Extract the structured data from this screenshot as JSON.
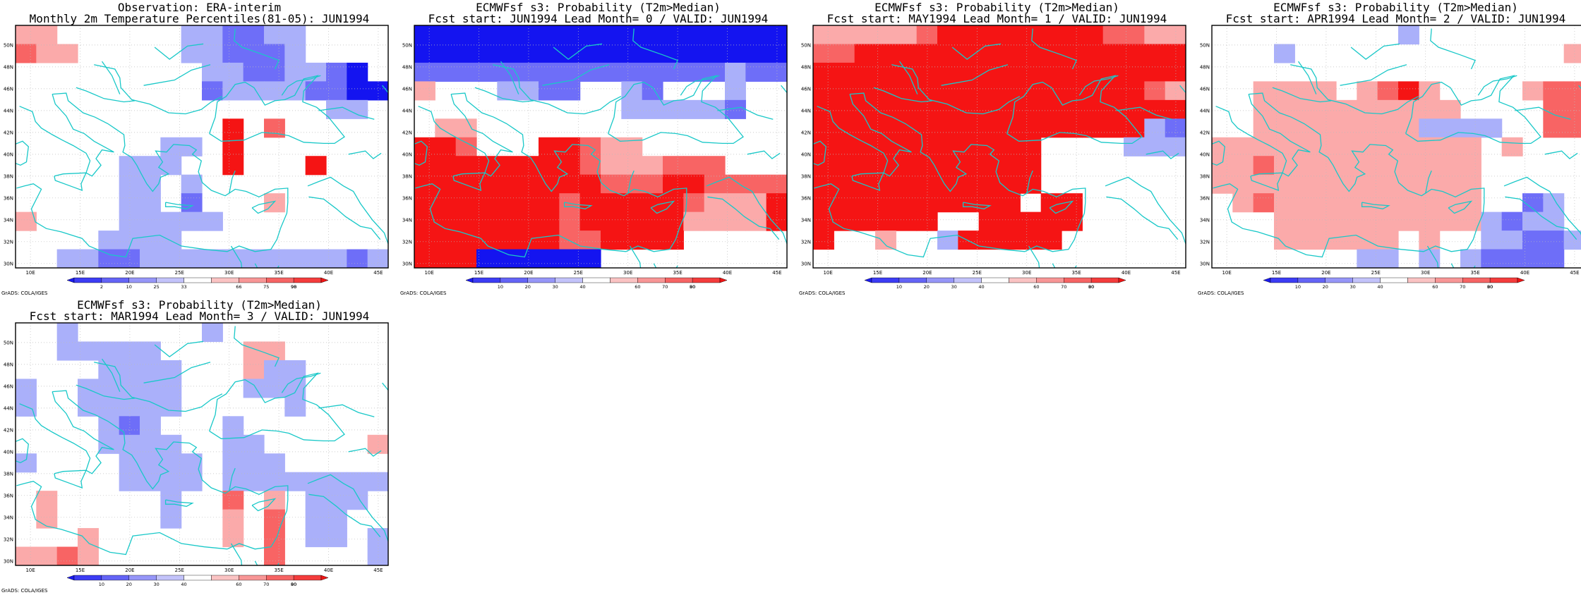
{
  "panels": [
    {
      "title_line1": "Observation: ERA-interim",
      "title_line2": "Monthly 2m Temperature Percentiles(81-05): JUN1994",
      "legend_ticks": [
        "2",
        "10",
        "25",
        "33",
        "66",
        "75",
        "90",
        "98"
      ],
      "grid": [
        [
          4,
          4,
          0,
          0,
          0,
          0,
          0,
          0,
          1,
          1,
          2,
          2,
          1,
          1,
          0,
          0,
          0,
          0
        ],
        [
          5,
          4,
          4,
          0,
          0,
          0,
          0,
          0,
          1,
          1,
          2,
          2,
          2,
          1,
          0,
          0,
          0,
          0
        ],
        [
          0,
          0,
          0,
          0,
          0,
          0,
          0,
          0,
          0,
          1,
          1,
          2,
          2,
          1,
          1,
          2,
          3,
          0
        ],
        [
          0,
          0,
          0,
          0,
          0,
          0,
          0,
          0,
          0,
          2,
          1,
          1,
          1,
          1,
          2,
          2,
          3,
          3
        ],
        [
          0,
          0,
          0,
          0,
          0,
          0,
          0,
          0,
          0,
          0,
          0,
          0,
          0,
          0,
          0,
          1,
          1,
          0
        ],
        [
          0,
          0,
          0,
          0,
          0,
          0,
          0,
          0,
          0,
          0,
          6,
          0,
          5,
          0,
          0,
          0,
          0,
          0
        ],
        [
          0,
          0,
          0,
          0,
          0,
          0,
          0,
          1,
          1,
          0,
          6,
          0,
          0,
          0,
          0,
          0,
          0,
          0
        ],
        [
          0,
          0,
          0,
          0,
          0,
          1,
          1,
          1,
          0,
          0,
          6,
          0,
          0,
          0,
          6,
          0,
          0,
          0
        ],
        [
          0,
          0,
          0,
          0,
          0,
          1,
          1,
          0,
          1,
          0,
          0,
          0,
          0,
          0,
          0,
          0,
          0,
          0
        ],
        [
          0,
          0,
          0,
          0,
          0,
          1,
          1,
          0,
          2,
          0,
          0,
          0,
          4,
          0,
          0,
          0,
          0,
          0
        ],
        [
          4,
          0,
          0,
          0,
          0,
          1,
          1,
          1,
          1,
          1,
          0,
          0,
          0,
          0,
          0,
          0,
          0,
          0
        ],
        [
          0,
          0,
          0,
          0,
          1,
          1,
          1,
          1,
          0,
          0,
          0,
          0,
          0,
          0,
          0,
          0,
          0,
          0
        ],
        [
          0,
          0,
          1,
          1,
          2,
          2,
          1,
          1,
          1,
          1,
          1,
          1,
          1,
          1,
          1,
          1,
          2,
          1
        ]
      ]
    },
    {
      "title_line1": "ECMWFsf s3: Probability (T2m>Median)",
      "title_line2": "Fcst start: JUN1994  Lead Month= 0 / VALID: JUN1994",
      "legend_ticks": [
        "10",
        "20",
        "30",
        "40",
        "60",
        "70",
        "80",
        "90"
      ],
      "grid": [
        [
          3,
          3,
          3,
          3,
          3,
          3,
          3,
          3,
          3,
          3,
          3,
          3,
          3,
          3,
          3,
          3,
          3,
          3
        ],
        [
          3,
          3,
          3,
          3,
          3,
          3,
          3,
          3,
          3,
          3,
          3,
          3,
          3,
          3,
          3,
          3,
          3,
          3
        ],
        [
          2,
          2,
          2,
          2,
          2,
          2,
          2,
          2,
          2,
          2,
          2,
          2,
          2,
          2,
          2,
          1,
          2,
          2
        ],
        [
          4,
          0,
          0,
          0,
          1,
          1,
          2,
          2,
          0,
          0,
          1,
          2,
          0,
          0,
          0,
          1,
          0,
          0
        ],
        [
          0,
          0,
          0,
          0,
          0,
          0,
          0,
          0,
          0,
          0,
          1,
          1,
          1,
          1,
          1,
          2,
          0,
          0
        ],
        [
          0,
          4,
          4,
          0,
          0,
          0,
          0,
          0,
          0,
          0,
          0,
          0,
          0,
          0,
          0,
          0,
          0,
          0
        ],
        [
          6,
          6,
          5,
          0,
          0,
          0,
          6,
          6,
          5,
          4,
          4,
          0,
          0,
          0,
          0,
          0,
          0,
          0
        ],
        [
          6,
          6,
          6,
          6,
          6,
          6,
          6,
          6,
          5,
          4,
          4,
          4,
          5,
          5,
          5,
          0,
          0,
          0
        ],
        [
          6,
          6,
          6,
          6,
          6,
          6,
          6,
          6,
          6,
          5,
          5,
          5,
          6,
          6,
          5,
          5,
          5,
          5
        ],
        [
          6,
          6,
          6,
          6,
          6,
          6,
          6,
          5,
          6,
          6,
          6,
          6,
          6,
          5,
          4,
          4,
          4,
          6
        ],
        [
          6,
          6,
          6,
          6,
          6,
          6,
          6,
          5,
          6,
          6,
          6,
          6,
          6,
          4,
          4,
          4,
          4,
          6
        ],
        [
          6,
          6,
          6,
          6,
          6,
          6,
          6,
          5,
          5,
          6,
          6,
          6,
          6,
          0,
          0,
          0,
          0,
          0
        ],
        [
          6,
          6,
          6,
          3,
          3,
          3,
          3,
          3,
          3,
          0,
          0,
          0,
          0,
          0,
          0,
          0,
          0,
          0
        ]
      ]
    },
    {
      "title_line1": "ECMWFsf s3: Probability (T2m>Median)",
      "title_line2": "Fcst start: MAY1994  Lead Month= 1 / VALID: JUN1994",
      "legend_ticks": [
        "10",
        "20",
        "30",
        "40",
        "60",
        "70",
        "80",
        "90"
      ],
      "grid": [
        [
          4,
          4,
          4,
          4,
          4,
          5,
          6,
          6,
          6,
          6,
          6,
          6,
          6,
          6,
          5,
          5,
          4,
          4
        ],
        [
          5,
          5,
          6,
          6,
          6,
          6,
          6,
          6,
          6,
          6,
          6,
          6,
          6,
          6,
          6,
          6,
          6,
          6
        ],
        [
          6,
          6,
          6,
          6,
          6,
          6,
          6,
          6,
          6,
          6,
          6,
          6,
          6,
          6,
          6,
          6,
          6,
          6
        ],
        [
          6,
          6,
          6,
          6,
          6,
          6,
          6,
          6,
          6,
          6,
          6,
          6,
          6,
          6,
          6,
          6,
          5,
          4
        ],
        [
          6,
          6,
          6,
          6,
          6,
          6,
          6,
          6,
          6,
          6,
          6,
          6,
          6,
          6,
          6,
          6,
          6,
          6
        ],
        [
          6,
          6,
          6,
          6,
          6,
          6,
          6,
          6,
          6,
          6,
          6,
          6,
          6,
          6,
          6,
          6,
          1,
          2
        ],
        [
          6,
          6,
          6,
          6,
          6,
          6,
          6,
          6,
          6,
          6,
          6,
          0,
          0,
          0,
          0,
          1,
          1,
          1
        ],
        [
          6,
          6,
          6,
          6,
          6,
          6,
          6,
          6,
          6,
          6,
          6,
          0,
          0,
          0,
          0,
          0,
          0,
          0
        ],
        [
          6,
          6,
          6,
          6,
          6,
          6,
          6,
          6,
          6,
          6,
          6,
          0,
          0,
          0,
          0,
          0,
          0,
          0
        ],
        [
          6,
          6,
          6,
          6,
          6,
          6,
          6,
          6,
          6,
          6,
          0,
          6,
          6,
          0,
          0,
          0,
          0,
          0
        ],
        [
          6,
          6,
          6,
          6,
          6,
          6,
          0,
          0,
          6,
          6,
          6,
          6,
          6,
          0,
          0,
          0,
          0,
          0
        ],
        [
          6,
          0,
          0,
          4,
          0,
          0,
          1,
          6,
          6,
          6,
          6,
          6,
          0,
          0,
          0,
          0,
          0,
          0
        ],
        [
          0,
          0,
          0,
          0,
          0,
          0,
          0,
          0,
          0,
          0,
          0,
          0,
          0,
          0,
          0,
          0,
          0,
          0
        ]
      ]
    },
    {
      "title_line1": "ECMWFsf s3: Probability (T2m>Median)",
      "title_line2": "Fcst start: APR1994  Lead Month= 2 / VALID: JUN1994",
      "legend_ticks": [
        "10",
        "20",
        "30",
        "40",
        "60",
        "70",
        "80",
        "90"
      ],
      "grid": [
        [
          0,
          0,
          0,
          0,
          0,
          0,
          0,
          0,
          0,
          1,
          0,
          0,
          0,
          0,
          0,
          0,
          0,
          0
        ],
        [
          0,
          0,
          0,
          1,
          0,
          0,
          0,
          0,
          0,
          0,
          0,
          0,
          0,
          0,
          0,
          0,
          0,
          4
        ],
        [
          0,
          0,
          0,
          0,
          0,
          0,
          0,
          0,
          0,
          0,
          0,
          0,
          0,
          0,
          0,
          0,
          0,
          0
        ],
        [
          0,
          0,
          4,
          4,
          4,
          4,
          0,
          4,
          5,
          6,
          4,
          0,
          0,
          0,
          0,
          4,
          5,
          5
        ],
        [
          0,
          0,
          4,
          4,
          4,
          4,
          4,
          4,
          4,
          4,
          4,
          4,
          0,
          0,
          0,
          0,
          5,
          5
        ],
        [
          0,
          0,
          4,
          4,
          4,
          4,
          4,
          4,
          4,
          4,
          1,
          1,
          1,
          1,
          0,
          0,
          5,
          5
        ],
        [
          4,
          4,
          4,
          4,
          4,
          4,
          4,
          4,
          4,
          4,
          4,
          4,
          4,
          0,
          4,
          0,
          0,
          0
        ],
        [
          4,
          4,
          5,
          4,
          4,
          4,
          4,
          4,
          4,
          4,
          4,
          4,
          4,
          0,
          0,
          0,
          0,
          0
        ],
        [
          4,
          4,
          4,
          4,
          4,
          4,
          4,
          4,
          4,
          4,
          4,
          4,
          4,
          0,
          0,
          0,
          0,
          0
        ],
        [
          0,
          4,
          5,
          4,
          4,
          4,
          4,
          4,
          4,
          4,
          4,
          4,
          4,
          0,
          0,
          2,
          1,
          0
        ],
        [
          0,
          0,
          0,
          4,
          4,
          4,
          4,
          4,
          4,
          4,
          4,
          4,
          4,
          1,
          2,
          1,
          1,
          0
        ],
        [
          0,
          0,
          0,
          4,
          4,
          4,
          4,
          4,
          4,
          0,
          4,
          0,
          0,
          1,
          1,
          2,
          2,
          1
        ],
        [
          0,
          0,
          0,
          0,
          0,
          0,
          0,
          1,
          1,
          0,
          1,
          0,
          1,
          2,
          2,
          2,
          2,
          0
        ]
      ]
    },
    {
      "title_line1": "ECMWFsf s3: Probability (T2m>Median)",
      "title_line2": "Fcst start: MAR1994  Lead Month= 3 / VALID: JUN1994",
      "legend_ticks": [
        "10",
        "20",
        "30",
        "40",
        "60",
        "70",
        "80",
        "90"
      ],
      "grid": [
        [
          0,
          0,
          1,
          0,
          0,
          0,
          0,
          0,
          0,
          1,
          0,
          0,
          0,
          0,
          0,
          0,
          0,
          0
        ],
        [
          0,
          0,
          1,
          1,
          1,
          1,
          1,
          0,
          0,
          0,
          0,
          4,
          4,
          0,
          0,
          0,
          0,
          0
        ],
        [
          0,
          0,
          0,
          0,
          1,
          1,
          1,
          1,
          0,
          0,
          0,
          4,
          1,
          1,
          0,
          0,
          0,
          0
        ],
        [
          1,
          0,
          0,
          1,
          1,
          1,
          1,
          1,
          0,
          0,
          0,
          1,
          1,
          1,
          0,
          0,
          0,
          0
        ],
        [
          1,
          0,
          0,
          1,
          1,
          1,
          1,
          1,
          0,
          0,
          0,
          0,
          0,
          1,
          0,
          0,
          0,
          0
        ],
        [
          0,
          0,
          0,
          0,
          1,
          2,
          1,
          0,
          0,
          0,
          1,
          0,
          0,
          0,
          0,
          0,
          0,
          0
        ],
        [
          0,
          0,
          0,
          0,
          1,
          1,
          1,
          1,
          0,
          0,
          1,
          1,
          0,
          0,
          0,
          0,
          0,
          4
        ],
        [
          1,
          0,
          0,
          0,
          0,
          1,
          1,
          1,
          1,
          0,
          1,
          1,
          1,
          0,
          0,
          0,
          0,
          0
        ],
        [
          0,
          0,
          0,
          0,
          0,
          1,
          1,
          1,
          1,
          0,
          1,
          1,
          1,
          1,
          1,
          1,
          1,
          1
        ],
        [
          0,
          4,
          0,
          0,
          0,
          0,
          0,
          1,
          0,
          0,
          5,
          0,
          4,
          0,
          1,
          1,
          1,
          0
        ],
        [
          0,
          4,
          0,
          0,
          0,
          0,
          0,
          1,
          0,
          0,
          4,
          0,
          5,
          0,
          1,
          1,
          0,
          0
        ],
        [
          0,
          0,
          0,
          4,
          0,
          0,
          0,
          0,
          0,
          0,
          4,
          0,
          5,
          0,
          1,
          1,
          0,
          1
        ],
        [
          4,
          4,
          5,
          4,
          0,
          0,
          0,
          0,
          0,
          0,
          0,
          0,
          5,
          0,
          0,
          0,
          0,
          1
        ]
      ]
    }
  ],
  "lat_labels": [
    "50N",
    "48N",
    "46N",
    "44N",
    "42N",
    "40N",
    "38N",
    "36N",
    "34N",
    "32N",
    "30N"
  ],
  "lon_labels": [
    "10E",
    "15E",
    "20E",
    "25E",
    "30E",
    "35E",
    "40E",
    "45E"
  ],
  "credit": "GrADS: COLA/IGES",
  "colors": {
    "levels": [
      "#ffffff",
      "#aab0fa",
      "#6e6ef8",
      "#1414f0",
      "#fbaaaa",
      "#f86464",
      "#f51414"
    ],
    "legend": [
      "#1a1af0",
      "#3c3cf4",
      "#6464f6",
      "#9696f8",
      "#c3c3fa",
      "#ffffff",
      "#fac3c3",
      "#f89696",
      "#f66464",
      "#f43c3c",
      "#f01414"
    ],
    "coast": "#19c8c8",
    "grid": "#bbbbbb",
    "frame": "#000000"
  }
}
